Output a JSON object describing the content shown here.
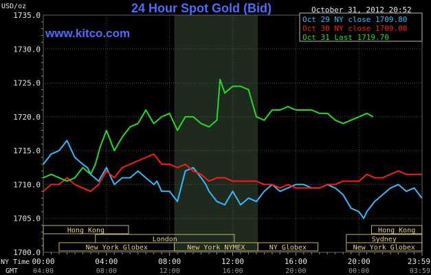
{
  "chart_data": {
    "type": "line",
    "title": "24 Hour Spot Gold (Bid)",
    "watermark": "www.kitco.com",
    "ylabel": "USD/oz",
    "date_stamp": "October 31, 2012 20:52",
    "ylim": [
      1700.0,
      1735.0
    ],
    "y_ticks": [
      "1735.0",
      "1730.0",
      "1725.0",
      "1720.0",
      "1715.0",
      "1710.0",
      "1705.0",
      "1700.0"
    ],
    "x_axis_labels": {
      "ny_label": "NY Time",
      "gmt_label": "GMT",
      "ny_ticks": [
        "00:00",
        "04:00",
        "08:00",
        "12:00",
        "16:00",
        "20:00",
        "23:59"
      ],
      "gmt_ticks": [
        "04:00",
        "08:00",
        "12:00",
        "16:00",
        "20:00",
        "00:00",
        "03:59"
      ]
    },
    "sessions": [
      {
        "name": "Hong Kong",
        "row": 0,
        "start": 0,
        "end": 5.4
      },
      {
        "name": "London",
        "row": 1,
        "start": 3.3,
        "end": 12.1
      },
      {
        "name": "New York Globex",
        "row": 2,
        "start": 1.0,
        "end": 8.3
      },
      {
        "name": "New York NYMEX",
        "row": 2,
        "start": 8.3,
        "end": 13.6
      },
      {
        "name": "NY Globex",
        "row": 2,
        "start": 13.6,
        "end": 17.4
      },
      {
        "name": "Sydney",
        "row": 1,
        "start": 19.2,
        "end": 23.99
      },
      {
        "name": "Hong Kong",
        "row": 0,
        "start": 20.8,
        "end": 23.99
      },
      {
        "name": "New York Globex",
        "row": 2,
        "start": 19.2,
        "end": 23.99
      }
    ],
    "series": [
      {
        "name": "Oct 29 NY close 1709.80",
        "color": "#33bbff",
        "x": [
          0,
          0.5,
          1,
          1.5,
          2,
          2.5,
          2.8,
          3,
          3.5,
          4,
          4.5,
          5,
          5.5,
          6,
          6.5,
          7,
          7.2,
          7.5,
          8,
          8.5,
          9,
          9.5,
          10,
          10.3,
          10.5,
          11,
          11.5,
          12,
          12.5,
          13,
          13.5,
          14,
          14.5,
          15,
          15.5,
          16,
          16.5,
          17,
          17.5,
          18,
          18.5,
          19,
          19.5,
          20,
          20.3,
          20.5,
          21,
          21.5,
          22,
          22.5,
          23,
          23.5,
          23.99
        ],
        "y": [
          1713,
          1714.5,
          1715,
          1716.5,
          1714,
          1713,
          1712.5,
          1711.5,
          1710.5,
          1712.5,
          1710,
          1711,
          1711,
          1712,
          1711,
          1710,
          1710.5,
          1709,
          1709,
          1707.5,
          1712,
          1712.5,
          1711,
          1710,
          1709,
          1707.5,
          1707,
          1709,
          1707,
          1708,
          1707.5,
          1709,
          1710,
          1709,
          1709.5,
          1710,
          1710,
          1709.5,
          1709.5,
          1710,
          1709.5,
          1708.5,
          1706.5,
          1706,
          1705,
          1706,
          1707.5,
          1708.5,
          1709.5,
          1710,
          1709,
          1709.5,
          1708
        ]
      },
      {
        "name": "Oct 30 NY close 1709.00",
        "color": "#ff1a1a",
        "x": [
          0,
          0.5,
          1,
          1.5,
          2,
          2.5,
          3,
          3.5,
          4,
          4.5,
          5,
          5.5,
          6,
          6.5,
          7,
          7.5,
          8,
          8.5,
          9,
          9.5,
          10,
          10.5,
          11,
          11.5,
          12,
          12.5,
          13,
          13.5,
          14,
          14.5,
          15,
          15.5,
          16,
          16.5,
          17,
          17.5,
          18,
          18.5,
          19,
          19.5,
          20,
          20.5,
          21,
          21.5,
          22,
          22.5,
          23,
          23.5,
          23.99
        ],
        "y": [
          1709,
          1710,
          1710,
          1711,
          1710,
          1709.5,
          1709,
          1710,
          1712,
          1711,
          1712.5,
          1713,
          1713.5,
          1714,
          1714.5,
          1713,
          1713,
          1712.5,
          1713,
          1712,
          1711.5,
          1710.5,
          1711,
          1711,
          1710.5,
          1710.5,
          1710.5,
          1710.5,
          1710,
          1710,
          1709.5,
          1710,
          1709.5,
          1709.5,
          1709.5,
          1709.5,
          1710,
          1710,
          1710.5,
          1710.5,
          1710.5,
          1711.5,
          1711,
          1711,
          1711.5,
          1712,
          1711.5,
          1711.5,
          1711.5
        ]
      },
      {
        "name": "Oct 31 Last 1719.70",
        "color": "#22dd22",
        "x": [
          0,
          0.5,
          1,
          1.5,
          2,
          2.5,
          3,
          3.3,
          3.6,
          4,
          4.5,
          5,
          5.5,
          6,
          6.5,
          7,
          7.5,
          8,
          8.5,
          9,
          9.5,
          10,
          10.5,
          11,
          11.2,
          11.5,
          12,
          12.5,
          13,
          13.5,
          14,
          14.5,
          15,
          15.5,
          16,
          16.5,
          17,
          17.5,
          18,
          18.5,
          19,
          19.5,
          20,
          20.5,
          20.9
        ],
        "y": [
          1711,
          1711.5,
          1711,
          1710.5,
          1711,
          1712.5,
          1711.5,
          1713,
          1715.5,
          1718,
          1715,
          1717,
          1718.5,
          1719,
          1721,
          1719,
          1720,
          1720.5,
          1718,
          1720,
          1720,
          1719,
          1718.5,
          1719.5,
          1725.5,
          1723.5,
          1724.5,
          1724.5,
          1724,
          1720,
          1719.5,
          1721,
          1721,
          1721.5,
          1721,
          1721,
          1721,
          1720.5,
          1720.5,
          1719.5,
          1719,
          1719.5,
          1720,
          1720.5,
          1720
        ]
      }
    ]
  }
}
